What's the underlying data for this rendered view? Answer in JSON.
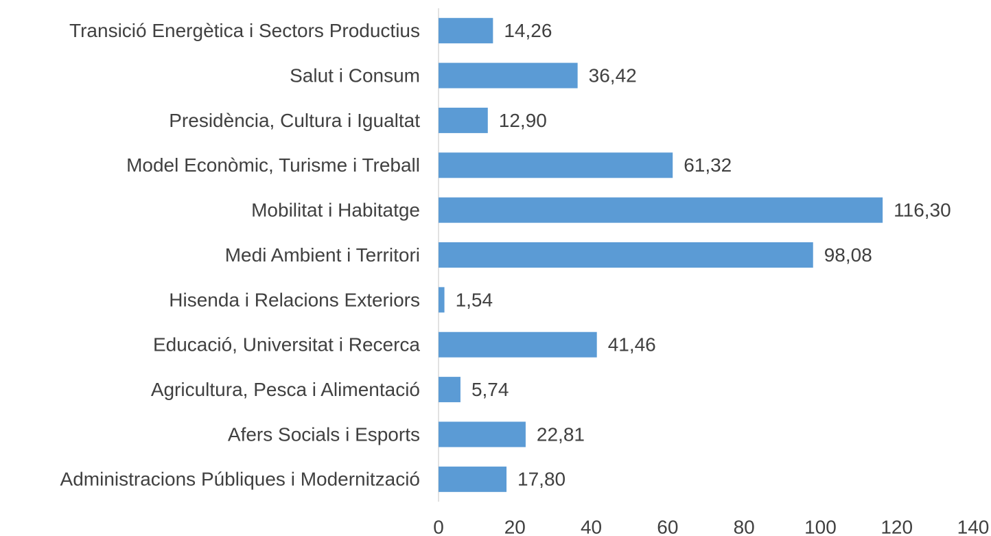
{
  "chart_data": {
    "type": "bar",
    "orientation": "horizontal",
    "categories": [
      "Transició Energètica i Sectors Productius",
      "Salut i Consum",
      "Presidència, Cultura i Igualtat",
      "Model Econòmic, Turisme i Treball",
      "Mobilitat i Habitatge",
      "Medi Ambient i Territori",
      "Hisenda i Relacions Exteriors",
      "Educació, Universitat i Recerca",
      "Agricultura, Pesca i Alimentació",
      "Afers Socials i Esports",
      "Administracions Públiques i Modernització"
    ],
    "values": [
      14.26,
      36.42,
      12.9,
      61.32,
      116.3,
      98.08,
      1.54,
      41.46,
      5.74,
      22.81,
      17.8
    ],
    "value_labels": [
      "14,26",
      "36,42",
      "12,90",
      "61,32",
      "116,30",
      "98,08",
      "1,54",
      "41,46",
      "5,74",
      "22,81",
      "17,80"
    ],
    "color": "#5b9bd5",
    "xlim": [
      0,
      140
    ],
    "xticks": [
      0,
      20,
      40,
      60,
      80,
      100,
      120,
      140
    ],
    "grid": false
  }
}
